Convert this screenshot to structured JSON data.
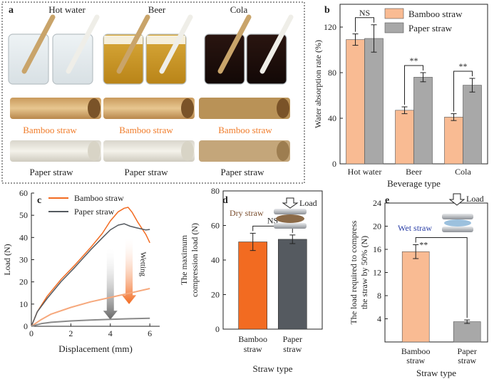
{
  "colors": {
    "bamboo": "#f9bb93",
    "paper": "#a8a8a8",
    "bamboo_bold": "#f26b21",
    "paper_bold": "#555a60",
    "bamboo_light": "#f6a87c",
    "paper_light": "#8a8a8a",
    "wet_label": "#2b3fa6",
    "dry_label": "#7a4e2e"
  },
  "panel_a": {
    "label": "a",
    "beverages": [
      "Hot water",
      "Beer",
      "Cola"
    ],
    "bamboo_label": "Bamboo straw",
    "paper_label": "Paper straw"
  },
  "chart_data": [
    {
      "panel": "b",
      "type": "bar",
      "categories": [
        "Hot water",
        "Beer",
        "Cola"
      ],
      "series": [
        {
          "name": "Bamboo straw",
          "values": [
            109,
            47,
            41
          ],
          "errors": [
            5,
            3,
            3
          ]
        },
        {
          "name": "Paper straw",
          "values": [
            110,
            76,
            69
          ],
          "errors": [
            12,
            4,
            6
          ]
        }
      ],
      "significance": [
        "NS",
        "**",
        "**"
      ],
      "xlabel": "Beverage type",
      "ylabel": "Water absorption rate (%)",
      "ylim": [
        0,
        140
      ],
      "yticks": [
        0,
        40,
        80,
        120
      ],
      "legend_position": "top-right"
    },
    {
      "panel": "c",
      "type": "line",
      "xlabel": "Displacement (mm)",
      "ylabel": "Load (N)",
      "xlim": [
        0,
        6.5
      ],
      "ylim": [
        0,
        60
      ],
      "xticks": [
        0,
        2,
        4,
        6
      ],
      "yticks": [
        0,
        10,
        20,
        30,
        40,
        50,
        60
      ],
      "annotation": "Wetting",
      "series": [
        {
          "name": "Bamboo straw",
          "condition": "dry",
          "x": [
            0,
            0.3,
            0.8,
            1.5,
            2.2,
            3.0,
            3.6,
            4.0,
            4.4,
            4.7,
            4.9,
            5.1,
            5.4,
            5.8,
            6.0
          ],
          "y": [
            0,
            6,
            13,
            21,
            28,
            36,
            42,
            47,
            51,
            53,
            54,
            52,
            47,
            41,
            37
          ]
        },
        {
          "name": "Paper straw",
          "condition": "dry",
          "x": [
            0,
            0.3,
            0.8,
            1.5,
            2.2,
            3.0,
            3.6,
            4.0,
            4.4,
            4.7,
            5.0,
            5.3,
            5.6,
            5.8,
            6.0
          ],
          "y": [
            0,
            6,
            12,
            20,
            27,
            35,
            40,
            43,
            45,
            46,
            45.5,
            45,
            44,
            43,
            43
          ]
        },
        {
          "condition": "wet",
          "x": [
            0,
            0.5,
            1.0,
            2.0,
            3.0,
            4.0,
            5.0,
            6.0
          ],
          "y": [
            0,
            3,
            5.5,
            8.5,
            11,
            13,
            15,
            17
          ]
        },
        {
          "condition": "wet",
          "x": [
            0,
            0.5,
            1.0,
            2.0,
            3.0,
            4.0,
            5.0,
            6.0
          ],
          "y": [
            0,
            1.2,
            1.8,
            2.4,
            2.8,
            3.1,
            3.4,
            3.6
          ]
        }
      ]
    },
    {
      "panel": "d",
      "type": "bar",
      "categories": [
        "Bamboo straw",
        "Paper straw"
      ],
      "values": [
        50.5,
        52
      ],
      "errors": [
        5,
        2.5
      ],
      "significance": "NS",
      "condition_label": "Dry straw",
      "load_label": "Load",
      "xlabel": "Straw type",
      "ylabel": "The maximum compression load (N)",
      "ylim": [
        0,
        80
      ],
      "yticks": [
        0,
        20,
        40,
        60,
        80
      ]
    },
    {
      "panel": "e",
      "type": "bar",
      "categories": [
        "Bamboo straw",
        "Paper straw"
      ],
      "values": [
        15.6,
        3.5
      ],
      "errors": [
        1.2,
        0.3
      ],
      "significance": "**",
      "condition_label": "Wet straw",
      "load_label": "Load",
      "xlabel": "Straw type",
      "ylabel": "The load required to compress the straw by 50% (N)",
      "ylim": [
        0,
        24
      ],
      "yticks": [
        4,
        8,
        12,
        16,
        20,
        24
      ]
    }
  ]
}
